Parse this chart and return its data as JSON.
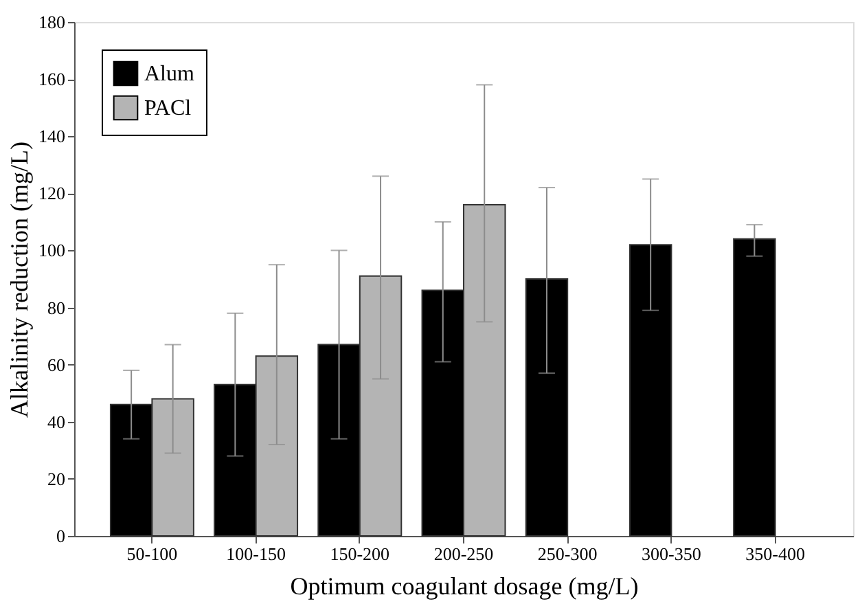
{
  "chart_data": {
    "type": "bar",
    "xlabel": "Optimum coagulant dosage (mg/L)",
    "ylabel": "Alkalinity reduction (mg/L)",
    "categories": [
      "50-100",
      "100-150",
      "150-200",
      "200-250",
      "250-300",
      "300-350",
      "350-400"
    ],
    "series": [
      {
        "name": "Alum",
        "color": "#000000",
        "values": [
          46,
          53,
          67,
          86,
          90,
          102,
          104
        ],
        "errors": [
          [
            34,
            58
          ],
          [
            28,
            78
          ],
          [
            34,
            100
          ],
          [
            61,
            110
          ],
          [
            57,
            122
          ],
          [
            79,
            125
          ],
          [
            98,
            109
          ]
        ]
      },
      {
        "name": "PACl",
        "color": "#b4b4b4",
        "values": [
          48,
          63,
          91,
          116,
          null,
          null,
          null
        ],
        "errors": [
          [
            29,
            67
          ],
          [
            32,
            95
          ],
          [
            55,
            126
          ],
          [
            75,
            158
          ],
          null,
          null,
          null
        ]
      }
    ],
    "ylim": [
      0,
      180
    ],
    "yticks": [
      0,
      20,
      40,
      60,
      80,
      100,
      120,
      140,
      160,
      180
    ],
    "grid": false,
    "legend": "top left"
  }
}
